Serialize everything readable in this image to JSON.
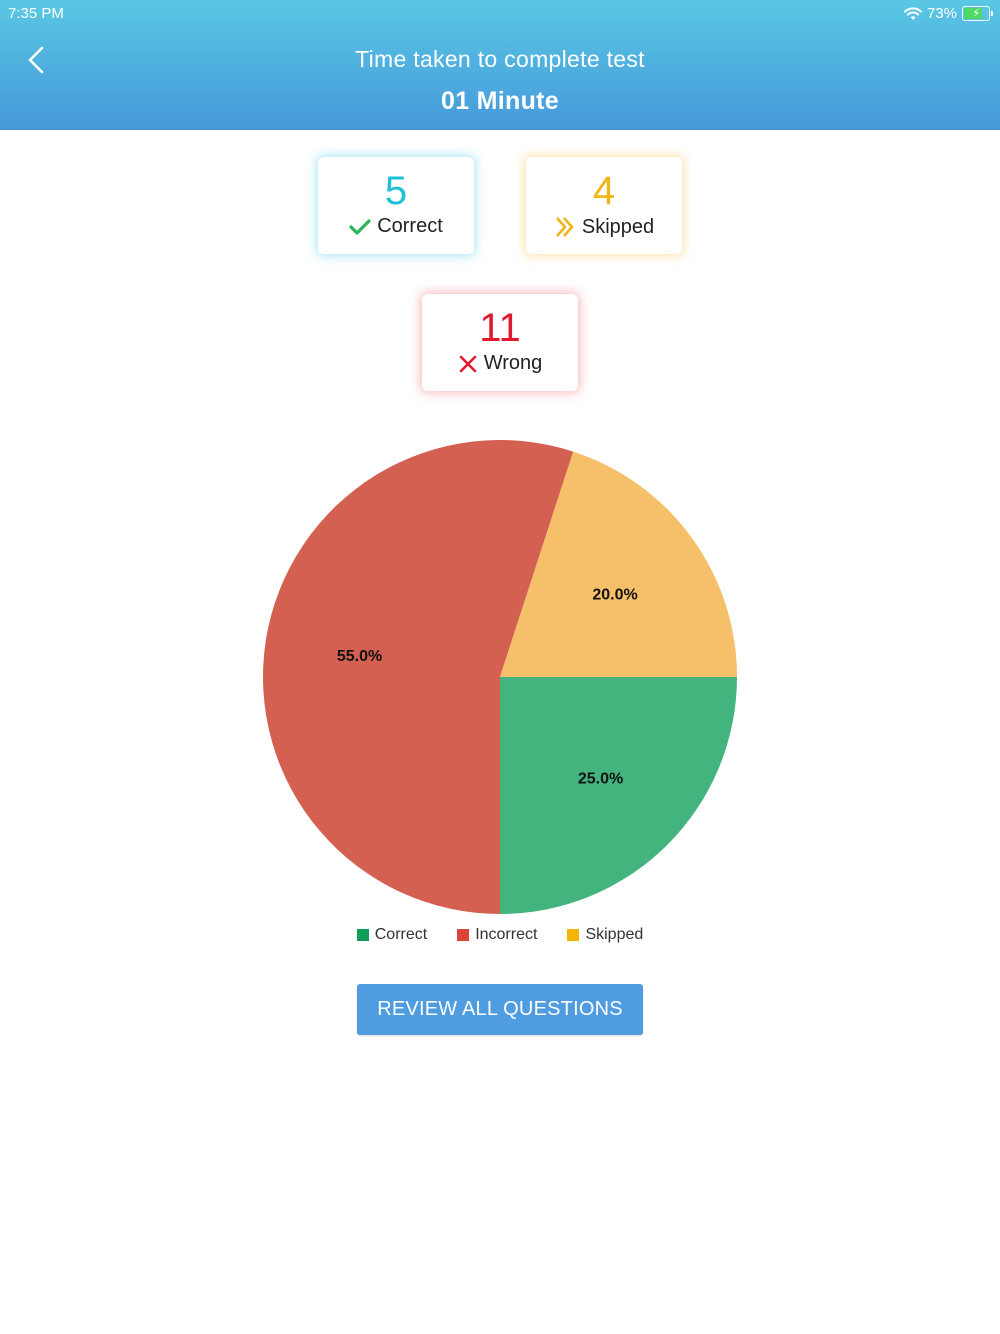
{
  "status_bar": {
    "time": "7:35 PM",
    "battery": "73%",
    "battery_level": 0.73
  },
  "header": {
    "back_icon": "chevron-left-icon",
    "title": "Time taken to complete test",
    "subtitle": "01 Minute"
  },
  "stats": {
    "correct": {
      "value": "5",
      "label": "Correct",
      "icon": "checkmark-icon",
      "color": "#22c0d8"
    },
    "skipped": {
      "value": "4",
      "label": "Skipped",
      "icon": "double-chevron-right-icon",
      "color": "#f2b418"
    },
    "wrong": {
      "value": "11",
      "label": "Wrong",
      "icon": "cross-icon",
      "color": "#e0192e"
    }
  },
  "chart_data": {
    "type": "pie",
    "slices": [
      {
        "name": "Correct",
        "value": 25.0,
        "label": "25.0%",
        "color": "#44b47f"
      },
      {
        "name": "Incorrect",
        "value": 55.0,
        "label": "55.0%",
        "color": "#d46052"
      },
      {
        "name": "Skipped",
        "value": 20.0,
        "label": "20.0%",
        "color": "#f6c06a"
      }
    ],
    "legend": [
      "Correct",
      "Incorrect",
      "Skipped"
    ],
    "legend_colors": [
      "#0f9d58",
      "#db4437",
      "#f4b400"
    ],
    "legend_position": "bottom"
  },
  "review_button": {
    "label": "REVIEW ALL QUESTIONS"
  }
}
